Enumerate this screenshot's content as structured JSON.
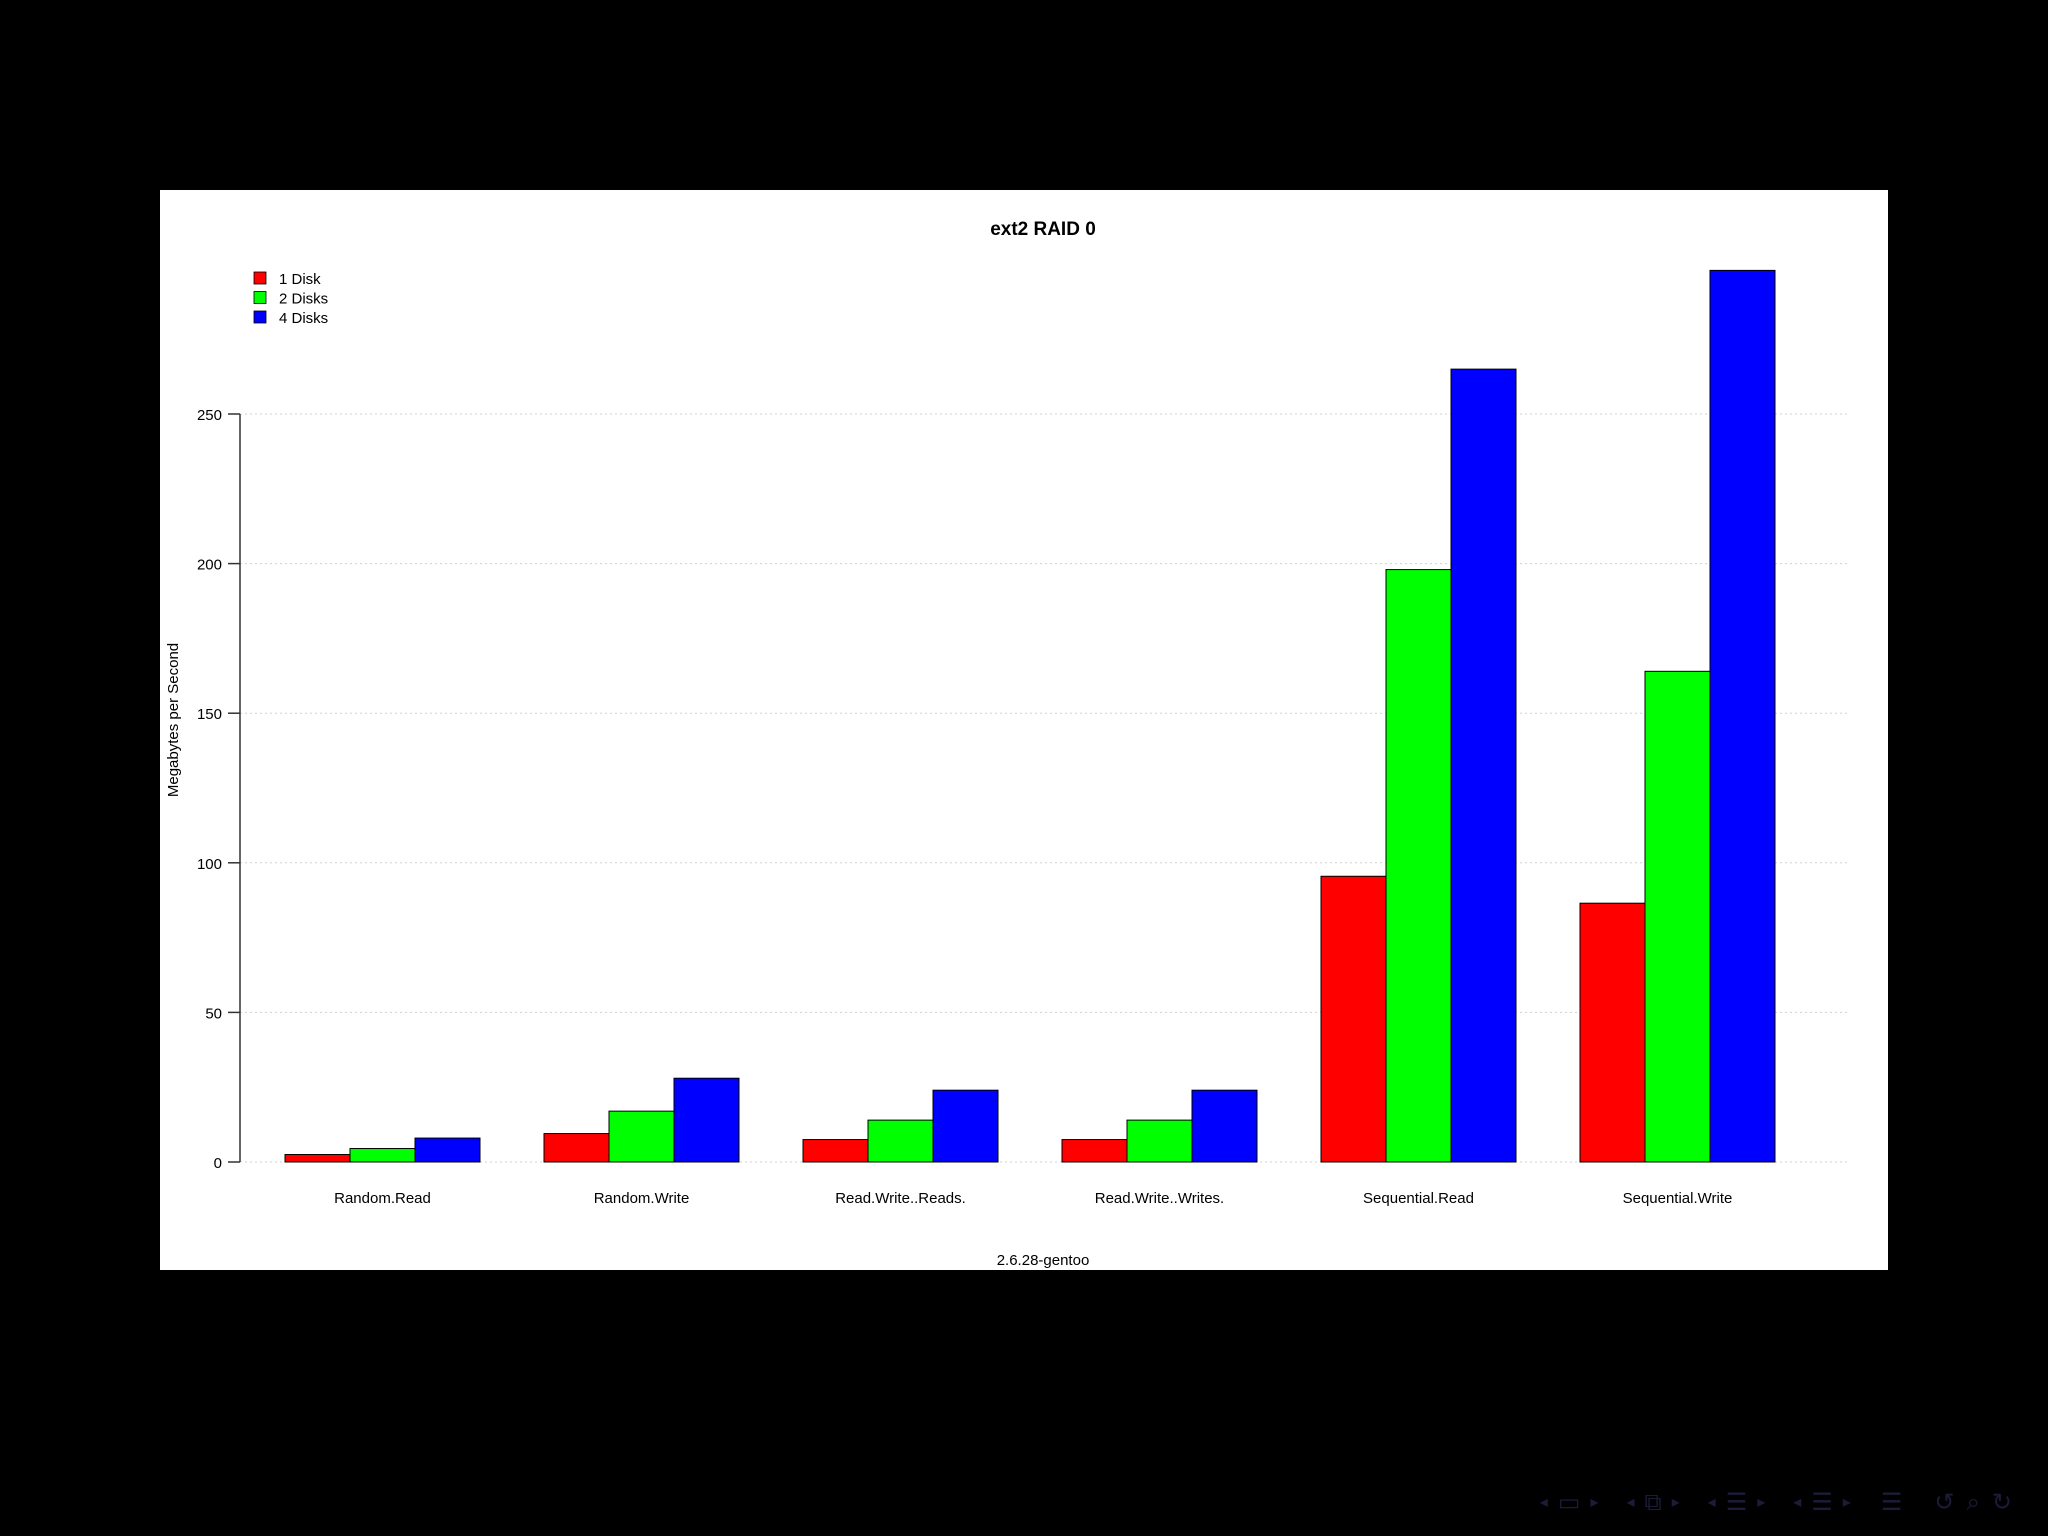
{
  "chart_data": {
    "type": "bar",
    "title": "ext2 RAID 0",
    "xlabel": "2.6.28-gentoo",
    "ylabel": "Megabytes per Second",
    "categories": [
      "Random.Read",
      "Random.Write",
      "Read.Write..Reads.",
      "Read.Write..Writes.",
      "Sequential.Read",
      "Sequential.Write"
    ],
    "series": [
      {
        "name": "1 Disk",
        "color": "#ff0000",
        "values": [
          2.5,
          9.5,
          7.5,
          7.5,
          95.5,
          86.5
        ]
      },
      {
        "name": "2 Disks",
        "color": "#00ff00",
        "values": [
          4.5,
          17,
          14,
          14,
          198,
          164
        ]
      },
      {
        "name": "4 Disks",
        "color": "#0000ff",
        "values": [
          8,
          28,
          24,
          24,
          265,
          298
        ]
      }
    ],
    "ylim": [
      0,
      300
    ],
    "yticks": [
      0,
      50,
      100,
      150,
      200,
      250
    ],
    "grid": true,
    "legend_position": "top-left"
  },
  "nav": {
    "icons": [
      "frame-prev-icon",
      "frame-icon",
      "frame-next-icon",
      "subsection-prev-icon",
      "subsection-icon",
      "subsection-next-icon",
      "section-prev-icon",
      "section-icon",
      "section-next-icon",
      "doc-prev-icon",
      "doc-icon",
      "doc-next-icon",
      "appendix-icon",
      "back-icon",
      "search-icon",
      "forward-icon"
    ]
  }
}
